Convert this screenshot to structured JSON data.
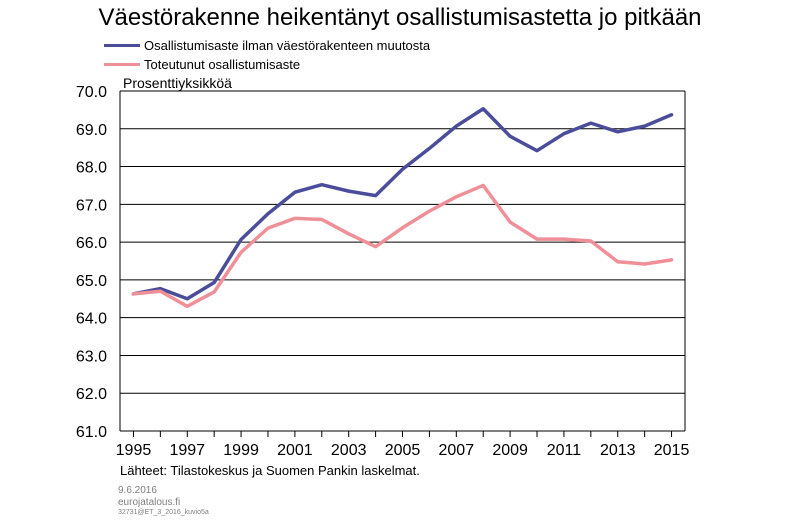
{
  "title": "Väestörakenne heikentänyt osallistumisastetta jo pitkään",
  "unit_label": "Prosenttiyksikköä",
  "sources": "Lähteet: Tilastokeskus ja Suomen Pankin laskelmat.",
  "footer": {
    "date": "9.6.2016",
    "site": "eurojatalous.fi",
    "code": "32731@ET_3_2016_kuvio5a"
  },
  "colors": {
    "series1": "#4b4d9b",
    "series2": "#ef8f98",
    "grid": "#000000"
  },
  "chart_data": {
    "type": "line",
    "title": "Väestörakenne heikentänyt osallistumisastetta jo pitkään",
    "ylabel": "Prosenttiyksikköä",
    "xlabel": "",
    "x": [
      1995,
      1996,
      1997,
      1998,
      1999,
      2000,
      2001,
      2002,
      2003,
      2004,
      2005,
      2006,
      2007,
      2008,
      2009,
      2010,
      2011,
      2012,
      2013,
      2014,
      2015
    ],
    "xticks": [
      "1995",
      "1997",
      "1999",
      "2001",
      "2003",
      "2005",
      "2007",
      "2009",
      "2011",
      "2013",
      "2015"
    ],
    "xlim": [
      1994.5,
      2015.5
    ],
    "ylim": [
      61.0,
      70.0
    ],
    "yticks": [
      "61.0",
      "62.0",
      "63.0",
      "64.0",
      "65.0",
      "66.0",
      "67.0",
      "68.0",
      "69.0",
      "70.0"
    ],
    "grid": true,
    "legend_position": "top-left",
    "series": [
      {
        "name": "Osallistumisaste ilman väestörakenteen muutosta",
        "color": "#4b4d9b",
        "values": [
          64.63,
          64.77,
          64.5,
          64.93,
          66.07,
          66.75,
          67.32,
          67.52,
          67.35,
          67.23,
          67.93,
          68.48,
          69.07,
          69.53,
          68.8,
          68.42,
          68.87,
          69.15,
          68.92,
          69.07,
          69.37
        ]
      },
      {
        "name": "Toteutunut osallistumisaste",
        "color": "#ef8f98",
        "values": [
          64.63,
          64.7,
          64.3,
          64.68,
          65.73,
          66.37,
          66.63,
          66.6,
          66.22,
          65.88,
          66.38,
          66.82,
          67.2,
          67.5,
          66.53,
          66.08,
          66.08,
          66.03,
          65.48,
          65.42,
          65.53
        ]
      }
    ]
  }
}
